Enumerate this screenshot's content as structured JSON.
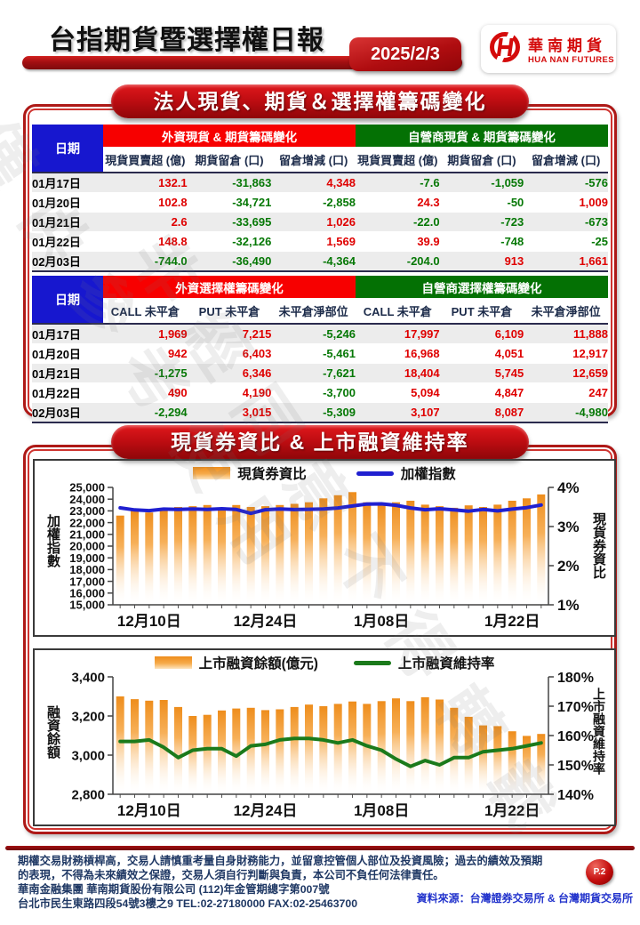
{
  "header": {
    "title": "台指期貨暨選擇權日報",
    "date": "2025/2/3",
    "logo_cn": "華南期貨",
    "logo_en": "HUA NAN FUTURES"
  },
  "colors": {
    "positive_red": "#df0000",
    "negative_green": "#067806",
    "header_blue": "#1717cf",
    "group_red": "#f70000",
    "group_green": "#047104",
    "banner_red": "#c00d12",
    "bar_orange": "#ee8d1c",
    "index_line_blue": "#2020d0",
    "maintenance_line_green": "#1b7a1b"
  },
  "section1": {
    "banner": "法人現貨、期貨＆選擇權籌碼變化",
    "tables": [
      {
        "date_header": "日期",
        "groups": [
          {
            "label": "外資現貨 & 期貨籌碼變化",
            "color": "#f70000"
          },
          {
            "label": "自營商現貨 & 期貨籌碼變化",
            "color": "#047104"
          }
        ],
        "columns": [
          "現貨買賣超 (億)",
          "期貨留倉 (口)",
          "留倉增減 (口)",
          "現貨買賣超 (億)",
          "期貨留倉 (口)",
          "留倉增減 (口)"
        ],
        "rows": [
          {
            "date": "01月17日",
            "values": [
              "132.1",
              "-31,863",
              "4,348",
              "-7.6",
              "-1,059",
              "-576"
            ]
          },
          {
            "date": "01月20日",
            "values": [
              "102.8",
              "-34,721",
              "-2,858",
              "24.3",
              "-50",
              "1,009"
            ]
          },
          {
            "date": "01月21日",
            "values": [
              "2.6",
              "-33,695",
              "1,026",
              "-22.0",
              "-723",
              "-673"
            ]
          },
          {
            "date": "01月22日",
            "values": [
              "148.8",
              "-32,126",
              "1,569",
              "39.9",
              "-748",
              "-25"
            ]
          },
          {
            "date": "02月03日",
            "values": [
              "-744.0",
              "-36,490",
              "-4,364",
              "-204.0",
              "913",
              "1,661"
            ]
          }
        ]
      },
      {
        "date_header": "日期",
        "groups": [
          {
            "label": "外資選擇權籌碼變化",
            "color": "#f70000"
          },
          {
            "label": "自營商選擇權籌碼變化",
            "color": "#047104"
          }
        ],
        "columns": [
          "CALL 未平倉",
          "PUT 未平倉",
          "未平倉淨部位",
          "CALL 未平倉",
          "PUT 未平倉",
          "未平倉淨部位"
        ],
        "rows": [
          {
            "date": "01月17日",
            "values": [
              "1,969",
              "7,215",
              "-5,246",
              "17,997",
              "6,109",
              "11,888"
            ]
          },
          {
            "date": "01月20日",
            "values": [
              "942",
              "6,403",
              "-5,461",
              "16,968",
              "4,051",
              "12,917"
            ]
          },
          {
            "date": "01月21日",
            "values": [
              "-1,275",
              "6,346",
              "-7,621",
              "18,404",
              "5,745",
              "12,659"
            ]
          },
          {
            "date": "01月22日",
            "values": [
              "490",
              "4,190",
              "-3,700",
              "5,094",
              "4,847",
              "247"
            ]
          },
          {
            "date": "02月03日",
            "values": [
              "-2,294",
              "3,015",
              "-5,309",
              "3,107",
              "8,087",
              "-4,980"
            ]
          }
        ]
      }
    ]
  },
  "section2": {
    "banner": "現貨券資比 & 上市融資維持率"
  },
  "chart_data": [
    {
      "type": "bar+line",
      "legend": [
        {
          "label": "現貨券資比",
          "swatch": "bar",
          "color": "#ee8d1c"
        },
        {
          "label": "加權指數",
          "swatch": "line",
          "color": "#2020d0"
        }
      ],
      "left_axis": {
        "label": "加權指數",
        "min": 15000,
        "max": 25000,
        "step": 1000,
        "format": "comma",
        "font": 13
      },
      "right_axis": {
        "label": "現貨券資比",
        "min": 1,
        "max": 4,
        "step": 1,
        "suffix": "%",
        "font": 17
      },
      "x_tick_labels": [
        "12月10日",
        "12月24日",
        "1月08日",
        "1月22日"
      ],
      "x_tick_positions": [
        2,
        10,
        18,
        27
      ],
      "bars": {
        "name": "現貨券資比",
        "axis": "right",
        "color": "#ee8d1c",
        "values": [
          3.28,
          3.42,
          3.36,
          3.46,
          3.5,
          3.52,
          3.55,
          3.48,
          3.55,
          3.5,
          3.52,
          3.55,
          3.58,
          3.62,
          3.72,
          3.8,
          3.88,
          3.62,
          3.56,
          3.62,
          3.66,
          3.56,
          3.52,
          3.48,
          3.54,
          3.5,
          3.56,
          3.66,
          3.72,
          3.82
        ]
      },
      "line": {
        "name": "加權指數",
        "axis": "left",
        "color": "#2020d0",
        "values": [
          23260,
          23080,
          23020,
          23150,
          23120,
          23160,
          23130,
          23180,
          23120,
          22790,
          23100,
          23160,
          23110,
          23140,
          23160,
          23250,
          23420,
          23580,
          23600,
          23480,
          23250,
          23100,
          23180,
          23080,
          22980,
          23120,
          23000,
          23150,
          23280,
          23500
        ]
      }
    },
    {
      "type": "bar+line",
      "legend": [
        {
          "label": "上市融資餘額(億元)",
          "swatch": "bar",
          "color": "#ee8d1c"
        },
        {
          "label": "上市融資維持率",
          "swatch": "line",
          "color": "#1b7a1b"
        }
      ],
      "left_axis": {
        "label": "融資餘額",
        "min": 2800,
        "max": 3400,
        "step": 200,
        "format": "comma",
        "font": 15
      },
      "right_axis": {
        "label": "上市融資維持率",
        "min": 140,
        "max": 180,
        "step": 10,
        "suffix": "%",
        "font": 16
      },
      "x_tick_labels": [
        "12月10日",
        "12月24日",
        "1月08日",
        "1月22日"
      ],
      "x_tick_positions": [
        2,
        10,
        18,
        27
      ],
      "bars": {
        "name": "上市融資餘額(億元)",
        "axis": "left",
        "color": "#ee8d1c",
        "values": [
          3300,
          3286,
          3278,
          3282,
          3246,
          3200,
          3206,
          3228,
          3238,
          3242,
          3230,
          3234,
          3246,
          3258,
          3250,
          3262,
          3274,
          3262,
          3276,
          3290,
          3276,
          3296,
          3284,
          3242,
          3196,
          3152,
          3148,
          3122,
          3098,
          3108
        ]
      },
      "line": {
        "name": "上市融資維持率",
        "axis": "right",
        "color": "#1b7a1b",
        "values": [
          158,
          158,
          158.5,
          156,
          152.5,
          155,
          155.5,
          155.5,
          153,
          156.5,
          157,
          158.5,
          159,
          159,
          158.5,
          157.5,
          158.5,
          156.5,
          155,
          152,
          149.5,
          151.5,
          150,
          152.5,
          152.5,
          154.5,
          155,
          155.5,
          156.5,
          157.5
        ]
      }
    }
  ],
  "footer": {
    "lines": [
      "期權交易財務槓桿高，交易人請慎重考量自身財務能力，並留意控管個人部位及投資風險；過去的績效及預期",
      "的表現，不得為未來績效之保證，交易人須自行判斷與負責，本公司不負任何法律責任。",
      "華南金融集團 華南期貨股份有限公司 (112)年金管期總字第007號",
      "台北市民生東路四段54號3樓之9  TEL:02-27180000  FAX:02-25463700"
    ],
    "source": "資料來源：台灣證券交易所 & 台灣期貨交易所",
    "page_badge": "P.2"
  },
  "watermarks": [
    "僅供參考使用",
    "非經同意不得轉載"
  ]
}
